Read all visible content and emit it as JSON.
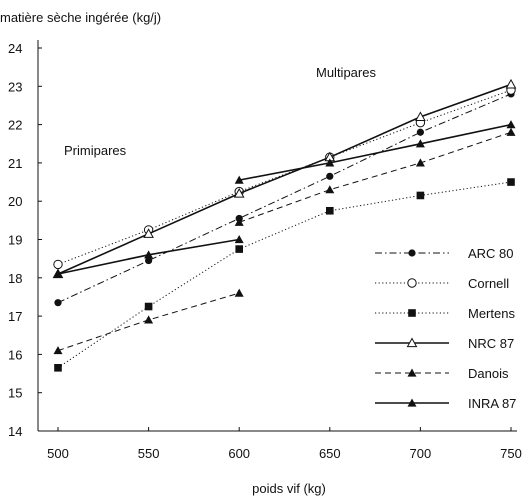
{
  "chart_data": {
    "type": "line",
    "ylabel": "matière sèche ingérée (kg/j)",
    "xlabel": "poids vif (kg)",
    "x": [
      500,
      550,
      600,
      650,
      700,
      750
    ],
    "xticks": [
      "500",
      "550",
      "600",
      "650",
      "700",
      "750"
    ],
    "yticks": [
      "14",
      "15",
      "16",
      "17",
      "18",
      "19",
      "20",
      "21",
      "22",
      "23",
      "24"
    ],
    "xlim": [
      500,
      750
    ],
    "ylim": [
      14,
      24
    ],
    "grid": false,
    "legend_position": "bottom-right",
    "annotations": [
      "Multipares",
      "Primipares"
    ],
    "series": [
      {
        "name": "ARC 80",
        "style": "dash-dot",
        "marker": "filled-circle",
        "points": [
          [
            500,
            17.35
          ],
          [
            550,
            18.45
          ],
          [
            600,
            19.55
          ],
          [
            650,
            20.65
          ],
          [
            700,
            21.8
          ],
          [
            750,
            22.8
          ]
        ]
      },
      {
        "name": "Cornell",
        "style": "dotted",
        "marker": "open-circle",
        "points": [
          [
            500,
            18.35
          ],
          [
            550,
            19.25
          ],
          [
            600,
            20.25
          ],
          [
            650,
            21.15
          ],
          [
            700,
            22.05
          ],
          [
            750,
            22.9
          ]
        ]
      },
      {
        "name": "Mertens",
        "style": "dotted",
        "marker": "filled-square",
        "points": [
          [
            500,
            15.65
          ],
          [
            550,
            17.25
          ],
          [
            600,
            18.75
          ],
          [
            650,
            19.75
          ],
          [
            700,
            20.15
          ],
          [
            750,
            20.5
          ]
        ]
      },
      {
        "name": "NRC 87",
        "style": "solid",
        "marker": "open-triangle",
        "points": [
          [
            500,
            18.1
          ],
          [
            550,
            19.15
          ],
          [
            600,
            20.2
          ],
          [
            650,
            21.15
          ],
          [
            700,
            22.2
          ],
          [
            750,
            23.05
          ]
        ]
      },
      {
        "name": "Danois",
        "style": "dashed",
        "marker": "filled-triangle",
        "segments": [
          [
            [
              500,
              16.1
            ],
            [
              550,
              16.9
            ],
            [
              600,
              17.6
            ]
          ],
          [
            [
              600,
              19.45
            ],
            [
              650,
              20.3
            ],
            [
              700,
              21.0
            ],
            [
              750,
              21.8
            ]
          ]
        ]
      },
      {
        "name": "INRA 87",
        "style": "solid",
        "marker": "filled-triangle",
        "segments": [
          [
            [
              500,
              18.1
            ],
            [
              550,
              18.6
            ],
            [
              600,
              19.0
            ]
          ],
          [
            [
              600,
              20.55
            ],
            [
              650,
              21.0
            ],
            [
              700,
              21.5
            ],
            [
              750,
              22.0
            ]
          ]
        ]
      }
    ],
    "colors": {
      "ink": "#111111",
      "background": "#ffffff"
    }
  }
}
